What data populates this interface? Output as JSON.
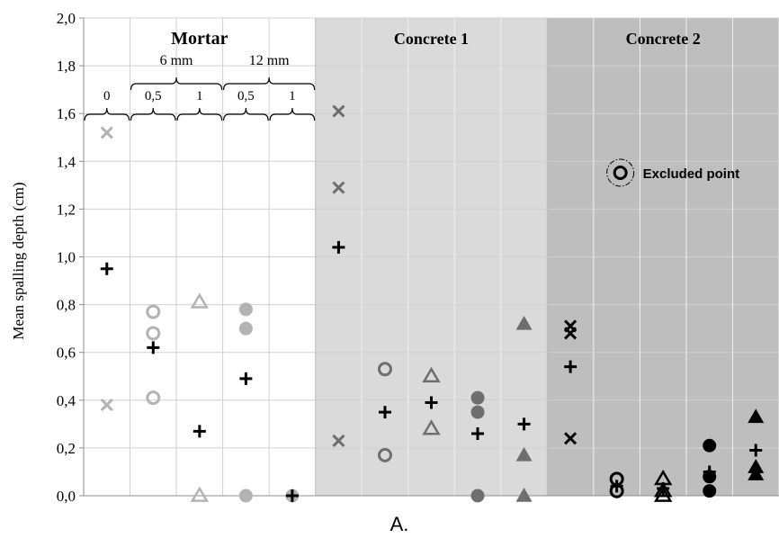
{
  "chart_data": {
    "type": "scatter",
    "ylabel": "Mean spalling depth (cm)",
    "ylim": [
      0,
      2.0
    ],
    "ytick_step": 0.2,
    "ytick_labels": [
      "0,0",
      "0,2",
      "0,4",
      "0,6",
      "0,8",
      "1,0",
      "1,2",
      "1,4",
      "1,6",
      "1,8",
      "2,0"
    ],
    "caption": "A.",
    "grid": true,
    "columns": 15,
    "regions": [
      {
        "label": "Mortar",
        "start_col": 0,
        "end_col": 5,
        "color": "#ffffff"
      },
      {
        "label": "Concrete 1",
        "start_col": 5,
        "end_col": 10,
        "color": "#dadada"
      },
      {
        "label": "Concrete 2",
        "start_col": 10,
        "end_col": 15,
        "color": "#bebebe"
      }
    ],
    "mortar_groups": [
      {
        "label": "6 mm",
        "start_col": 1,
        "end_col": 3
      },
      {
        "label": "12 mm",
        "start_col": 3,
        "end_col": 5
      }
    ],
    "column_labels": [
      {
        "col": 0,
        "label": "0"
      },
      {
        "col": 1,
        "label": "0,5"
      },
      {
        "col": 2,
        "label": "1"
      },
      {
        "col": 3,
        "label": "0,5"
      },
      {
        "col": 4,
        "label": "1"
      }
    ],
    "legend": {
      "label": "Excluded point",
      "symbol": "circle-dashdot"
    },
    "series": [
      {
        "col": 0,
        "marker": "x",
        "color": "#b3b3b3",
        "values": [
          1.52,
          0.38
        ]
      },
      {
        "col": 0,
        "marker": "plus",
        "color": "#000000",
        "values": [
          0.95
        ]
      },
      {
        "col": 1,
        "marker": "circle-open",
        "color": "#b3b3b3",
        "values": [
          0.77,
          0.68,
          0.41
        ]
      },
      {
        "col": 1,
        "marker": "plus",
        "color": "#000000",
        "values": [
          0.62
        ]
      },
      {
        "col": 2,
        "marker": "triangle-open",
        "color": "#b3b3b3",
        "values": [
          0.81,
          0.0
        ]
      },
      {
        "col": 2,
        "marker": "plus",
        "color": "#000000",
        "values": [
          0.27
        ]
      },
      {
        "col": 3,
        "marker": "circle-filled",
        "color": "#b3b3b3",
        "values": [
          0.78,
          0.7,
          0.0
        ]
      },
      {
        "col": 3,
        "marker": "plus",
        "color": "#000000",
        "values": [
          0.49
        ]
      },
      {
        "col": 4,
        "marker": "circle-filled",
        "color": "#b3b3b3",
        "values": [
          0.0
        ]
      },
      {
        "col": 4,
        "marker": "plus",
        "color": "#000000",
        "values": [
          0.0
        ]
      },
      {
        "col": 5,
        "marker": "x",
        "color": "#6e6e6e",
        "values": [
          1.61,
          1.29,
          0.23
        ]
      },
      {
        "col": 5,
        "marker": "plus",
        "color": "#000000",
        "values": [
          1.04
        ]
      },
      {
        "col": 6,
        "marker": "circle-open",
        "color": "#6e6e6e",
        "values": [
          0.53,
          0.17
        ]
      },
      {
        "col": 6,
        "marker": "plus",
        "color": "#000000",
        "values": [
          0.35
        ]
      },
      {
        "col": 7,
        "marker": "triangle-open",
        "color": "#6e6e6e",
        "values": [
          0.5,
          0.28
        ]
      },
      {
        "col": 7,
        "marker": "plus",
        "color": "#000000",
        "values": [
          0.39
        ]
      },
      {
        "col": 8,
        "marker": "circle-filled",
        "color": "#6e6e6e",
        "values": [
          0.41,
          0.35,
          0.0
        ]
      },
      {
        "col": 8,
        "marker": "plus",
        "color": "#000000",
        "values": [
          0.26
        ]
      },
      {
        "col": 9,
        "marker": "triangle-filled",
        "color": "#6e6e6e",
        "values": [
          0.72,
          0.17,
          0.0
        ]
      },
      {
        "col": 9,
        "marker": "plus",
        "color": "#000000",
        "values": [
          0.3
        ]
      },
      {
        "col": 10,
        "marker": "x",
        "color": "#000000",
        "values": [
          0.71,
          0.68,
          0.24
        ]
      },
      {
        "col": 10,
        "marker": "plus",
        "color": "#000000",
        "values": [
          0.54
        ]
      },
      {
        "col": 11,
        "marker": "circle-open",
        "color": "#000000",
        "values": [
          0.07,
          0.02
        ]
      },
      {
        "col": 11,
        "marker": "plus",
        "color": "#000000",
        "values": [
          0.04
        ]
      },
      {
        "col": 12,
        "marker": "triangle-open",
        "color": "#000000",
        "values": [
          0.07,
          0.02,
          0.0
        ]
      },
      {
        "col": 12,
        "marker": "plus",
        "color": "#000000",
        "values": [
          0.03
        ]
      },
      {
        "col": 13,
        "marker": "circle-filled",
        "color": "#000000",
        "values": [
          0.21,
          0.08,
          0.02
        ]
      },
      {
        "col": 13,
        "marker": "plus",
        "color": "#000000",
        "values": [
          0.1
        ]
      },
      {
        "col": 14,
        "marker": "triangle-filled",
        "color": "#000000",
        "values": [
          0.33,
          0.12,
          0.09
        ]
      },
      {
        "col": 14,
        "marker": "plus",
        "color": "#000000",
        "values": [
          0.19
        ]
      }
    ]
  }
}
